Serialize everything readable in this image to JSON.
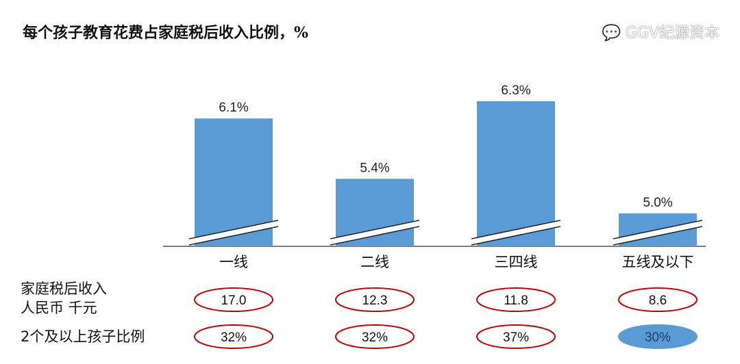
{
  "chart_data": {
    "type": "bar",
    "title": "每个孩子教育花费占家庭税后收入比例，%",
    "categories": [
      "一线",
      "二线",
      "三四线",
      "五线及以下"
    ],
    "values": [
      6.1,
      5.4,
      6.3,
      5.0
    ],
    "data_labels": [
      "6.1%",
      "5.4%",
      "6.3%",
      "5.0%"
    ],
    "axis_break": true,
    "bar_color": "#5b9bd5",
    "table_rows": [
      {
        "label_lines": [
          "家庭税后收入",
          "人民币 千元"
        ],
        "values": [
          "17.0",
          "12.3",
          "11.8",
          "8.6"
        ]
      },
      {
        "label_lines": [
          "2个及以上孩子比例"
        ],
        "values": [
          "32%",
          "32%",
          "37%",
          "30%"
        ]
      }
    ],
    "ellipse_color": "#c00000"
  },
  "watermark": "GGV纪源资本"
}
